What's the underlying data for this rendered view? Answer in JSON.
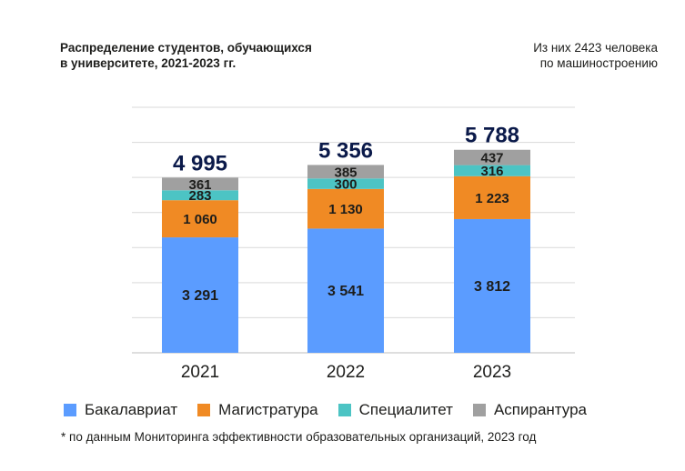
{
  "title_lines": [
    "Распределение студентов, обучающихся",
    "в университете, 2021-2023 гг."
  ],
  "note_lines": [
    "Из них 2423 человека",
    "по машиностроению"
  ],
  "footnote": "* по данным Мониторинга эффективности образовательных организаций, 2023 год",
  "chart_data": {
    "type": "bar",
    "stacked": true,
    "categories": [
      "2021",
      "2022",
      "2023"
    ],
    "series": [
      {
        "name": "Бакалавриат",
        "values": [
          3291,
          3541,
          3812
        ],
        "labels": [
          "3 291",
          "3 541",
          "3 812"
        ],
        "color": "#5b9cff"
      },
      {
        "name": "Магистратура",
        "values": [
          1060,
          1130,
          1223
        ],
        "labels": [
          "1 060",
          "1 130",
          "1 223"
        ],
        "color": "#f08a24"
      },
      {
        "name": "Специалитет",
        "values": [
          283,
          300,
          316
        ],
        "labels": [
          "283",
          "300",
          "316"
        ],
        "color": "#4cc4c4"
      },
      {
        "name": "Аспирантура",
        "values": [
          361,
          385,
          437
        ],
        "labels": [
          "361",
          "385",
          "437"
        ],
        "color": "#a0a0a0"
      }
    ],
    "totals": [
      "4 995",
      "5 356",
      "5 788"
    ],
    "ylim": [
      0,
      7000
    ],
    "grid": true,
    "legend": "bottom"
  }
}
